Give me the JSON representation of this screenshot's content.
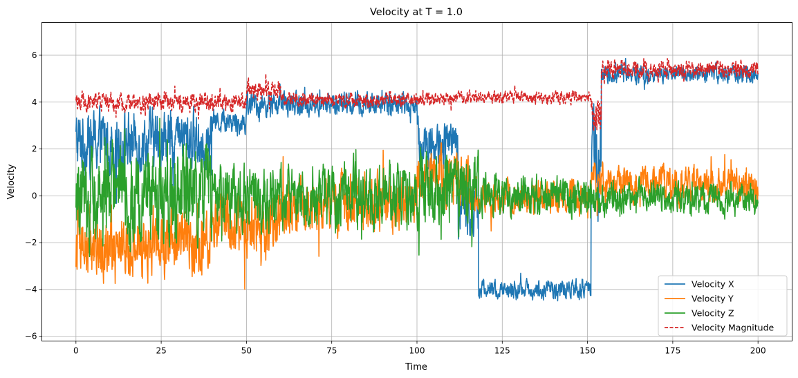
{
  "chart_data": {
    "type": "line",
    "title": "Velocity at T = 1.0",
    "xlabel": "Time",
    "ylabel": "Velocity",
    "xlim": [
      -10,
      210
    ],
    "ylim": [
      -6.2,
      7.4
    ],
    "xticks": [
      0,
      25,
      50,
      75,
      100,
      125,
      150,
      175,
      200
    ],
    "yticks": [
      -6,
      -4,
      -2,
      0,
      2,
      4,
      6
    ],
    "ytick_labels": [
      "−6",
      "−4",
      "−2",
      "0",
      "2",
      "4",
      "6"
    ],
    "grid": true,
    "legend_position": "lower-right",
    "series": [
      {
        "name": "Velocity X",
        "color": "#1f77b4",
        "style": "solid",
        "segments": [
          {
            "t0": 0,
            "t1": 20,
            "mean": 2.3,
            "amp": 1.6
          },
          {
            "t0": 20,
            "t1": 40,
            "mean": 2.4,
            "amp": 1.5
          },
          {
            "t0": 40,
            "t1": 50,
            "mean": 3.2,
            "amp": 0.6
          },
          {
            "t0": 50,
            "t1": 75,
            "mean": 3.9,
            "amp": 0.6
          },
          {
            "t0": 75,
            "t1": 100,
            "mean": 3.9,
            "amp": 0.6
          },
          {
            "t0": 100,
            "t1": 112,
            "mean": 2.2,
            "amp": 1.2
          },
          {
            "t0": 112,
            "t1": 118,
            "mean": -0.5,
            "amp": 1.5
          },
          {
            "t0": 118,
            "t1": 151,
            "mean": -4.0,
            "amp": 0.45
          },
          {
            "t0": 151,
            "t1": 154,
            "mean": 1.0,
            "amp": 3.0
          },
          {
            "t0": 154,
            "t1": 200,
            "mean": 5.2,
            "amp": 0.45
          }
        ]
      },
      {
        "name": "Velocity Y",
        "color": "#ff7f0e",
        "style": "solid",
        "segments": [
          {
            "t0": 0,
            "t1": 40,
            "mean": -2.0,
            "amp": 1.7
          },
          {
            "t0": 40,
            "t1": 60,
            "mean": -1.2,
            "amp": 1.6
          },
          {
            "t0": 60,
            "t1": 100,
            "mean": -0.3,
            "amp": 1.4
          },
          {
            "t0": 100,
            "t1": 115,
            "mean": 0.8,
            "amp": 1.3
          },
          {
            "t0": 115,
            "t1": 151,
            "mean": -0.1,
            "amp": 0.8
          },
          {
            "t0": 151,
            "t1": 200,
            "mean": 0.5,
            "amp": 0.9
          }
        ]
      },
      {
        "name": "Velocity Z",
        "color": "#2ca02c",
        "style": "solid",
        "segments": [
          {
            "t0": 0,
            "t1": 40,
            "mean": 0.0,
            "amp": 2.2
          },
          {
            "t0": 40,
            "t1": 100,
            "mean": 0.0,
            "amp": 1.6
          },
          {
            "t0": 100,
            "t1": 118,
            "mean": 0.3,
            "amp": 1.8
          },
          {
            "t0": 118,
            "t1": 151,
            "mean": 0.0,
            "amp": 1.0
          },
          {
            "t0": 151,
            "t1": 200,
            "mean": -0.1,
            "amp": 0.8
          }
        ]
      },
      {
        "name": "Velocity Magnitude",
        "color": "#d62728",
        "style": "dashed",
        "segments": [
          {
            "t0": 0,
            "t1": 50,
            "mean": 4.0,
            "amp": 0.45
          },
          {
            "t0": 50,
            "t1": 60,
            "mean": 4.5,
            "amp": 0.5
          },
          {
            "t0": 60,
            "t1": 110,
            "mean": 4.1,
            "amp": 0.35
          },
          {
            "t0": 110,
            "t1": 151,
            "mean": 4.2,
            "amp": 0.3
          },
          {
            "t0": 151,
            "t1": 154,
            "mean": 3.5,
            "amp": 0.9
          },
          {
            "t0": 154,
            "t1": 200,
            "mean": 5.4,
            "amp": 0.45
          }
        ]
      }
    ]
  }
}
